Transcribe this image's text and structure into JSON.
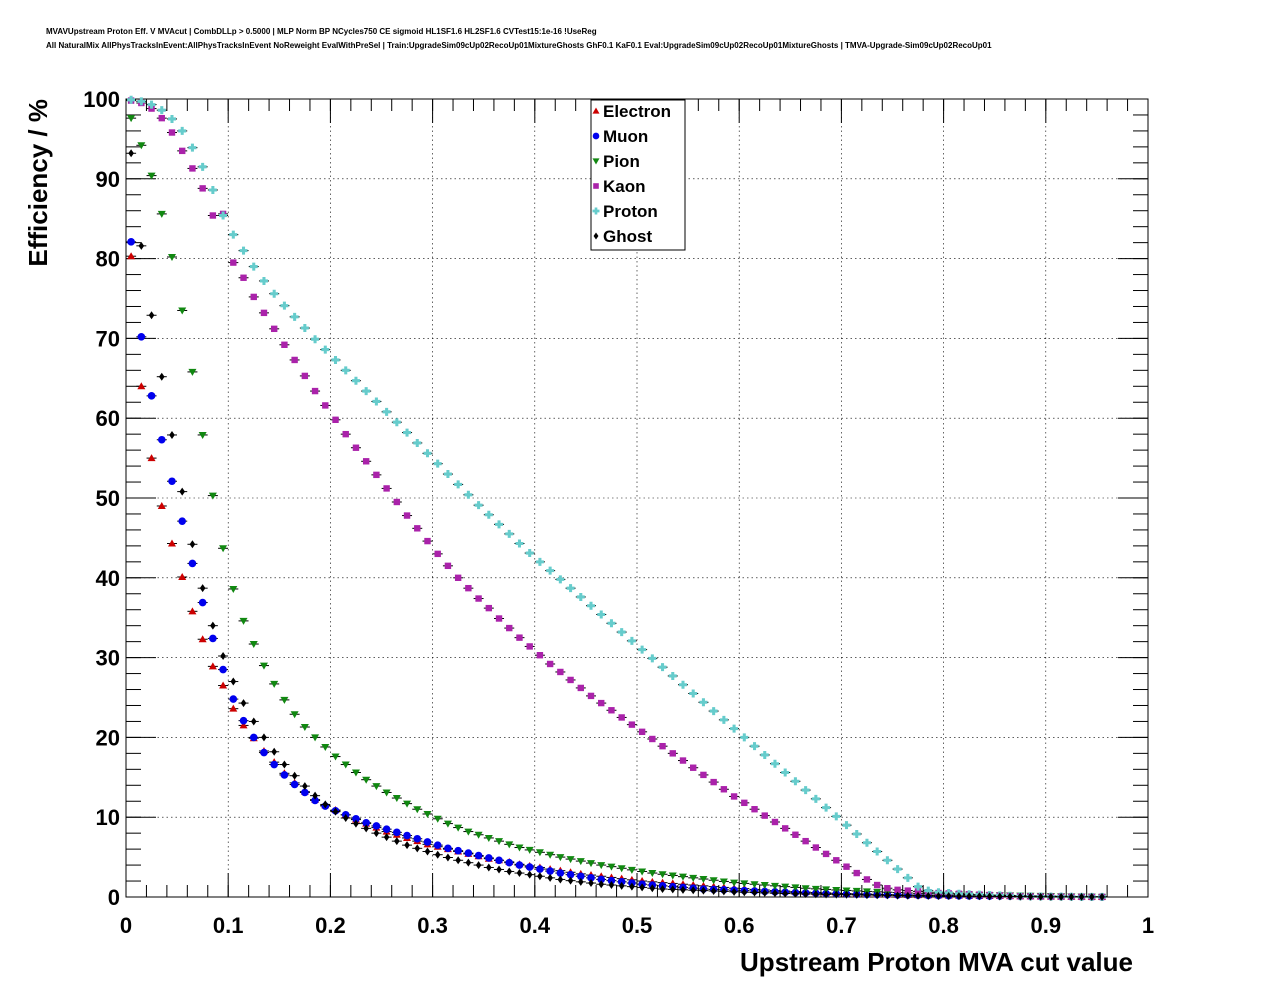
{
  "header": {
    "line1": "MVAVUpstream Proton Eff. V MVAcut | CombDLLp > 0.5000 | MLP Norm BP NCycles750 CE sigmoid HL1SF1.6 HL2SF1.6 CVTest15:1e-16 !UseReg",
    "line2": "All NaturalMix AllPhysTracksInEvent:AllPhysTracksInEvent NoReweight EvalWithPreSel | Train:UpgradeSim09cUp02RecoUp01MixtureGhosts GhF0.1 KaF0.1 Eval:UpgradeSim09cUp02RecoUp01MixtureGhosts | TMVA-Upgrade-Sim09cUp02RecoUp01"
  },
  "chart_data": {
    "type": "scatter",
    "xlabel": "Upstream Proton MVA cut value",
    "ylabel": "Efficiency / %",
    "xlim": [
      0,
      1
    ],
    "ylim": [
      0,
      100
    ],
    "x_ticks": [
      "0",
      "0.1",
      "0.2",
      "0.3",
      "0.4",
      "0.5",
      "0.6",
      "0.7",
      "0.8",
      "0.9",
      "1"
    ],
    "y_ticks": [
      "0",
      "10",
      "20",
      "30",
      "40",
      "50",
      "60",
      "70",
      "80",
      "90",
      "100"
    ],
    "grid": true,
    "legend_position": "top-center",
    "x": [
      0.005,
      0.015,
      0.025,
      0.035,
      0.045,
      0.055,
      0.065,
      0.075,
      0.085,
      0.095,
      0.105,
      0.115,
      0.125,
      0.135,
      0.145,
      0.155,
      0.165,
      0.175,
      0.185,
      0.195,
      0.205,
      0.215,
      0.225,
      0.235,
      0.245,
      0.255,
      0.265,
      0.275,
      0.285,
      0.295,
      0.305,
      0.315,
      0.325,
      0.335,
      0.345,
      0.355,
      0.365,
      0.375,
      0.385,
      0.395,
      0.405,
      0.415,
      0.425,
      0.435,
      0.445,
      0.455,
      0.465,
      0.475,
      0.485,
      0.495,
      0.505,
      0.515,
      0.525,
      0.535,
      0.545,
      0.555,
      0.565,
      0.575,
      0.585,
      0.595,
      0.605,
      0.615,
      0.625,
      0.635,
      0.645,
      0.655,
      0.665,
      0.675,
      0.685,
      0.695,
      0.705,
      0.715,
      0.725,
      0.735,
      0.745,
      0.755,
      0.765,
      0.775,
      0.785,
      0.795,
      0.805,
      0.815,
      0.825,
      0.835,
      0.845,
      0.855,
      0.865,
      0.875,
      0.885,
      0.895,
      0.905,
      0.915,
      0.925,
      0.935,
      0.945,
      0.955
    ],
    "series": [
      {
        "name": "Electron",
        "color": "#cc0000",
        "marker": "triangle-up",
        "values": [
          80.3,
          64.0,
          55.0,
          49.0,
          44.3,
          40.1,
          35.8,
          32.3,
          28.9,
          26.5,
          23.6,
          21.5,
          19.9,
          18.3,
          16.9,
          15.5,
          14.3,
          13.2,
          12.2,
          11.5,
          10.9,
          10.3,
          9.7,
          9.2,
          8.7,
          8.2,
          7.8,
          7.4,
          7.0,
          6.6,
          6.3,
          6.0,
          5.7,
          5.4,
          5.1,
          4.8,
          4.6,
          4.4,
          4.1,
          3.9,
          3.7,
          3.5,
          3.3,
          3.1,
          2.9,
          2.75,
          2.6,
          2.45,
          2.3,
          2.15,
          2.0,
          1.9,
          1.8,
          1.7,
          1.6,
          1.5,
          1.4,
          1.3,
          1.2,
          1.1,
          1.05,
          0.95,
          0.88,
          0.8,
          0.74,
          0.68,
          0.62,
          0.56,
          0.52,
          0.48,
          0.44,
          0.4,
          0.37,
          0.34,
          0.31,
          0.28,
          0.26,
          0.24,
          0.22,
          0.2,
          0.18,
          0.17,
          0.15,
          0.14,
          0.13,
          0.12,
          0.11,
          0.1,
          0.09,
          0.08,
          0.07,
          0.06,
          0.05,
          0.04,
          0.03,
          0.02
        ]
      },
      {
        "name": "Muon",
        "color": "#0000ee",
        "marker": "circle",
        "values": [
          82.1,
          70.2,
          62.8,
          57.3,
          52.1,
          47.1,
          41.8,
          36.9,
          32.4,
          28.5,
          24.8,
          22.1,
          20.0,
          18.1,
          16.6,
          15.3,
          14.1,
          13.1,
          12.1,
          11.4,
          10.8,
          10.3,
          9.8,
          9.3,
          8.9,
          8.5,
          8.1,
          7.7,
          7.3,
          6.9,
          6.5,
          6.1,
          5.8,
          5.5,
          5.2,
          4.9,
          4.6,
          4.3,
          4.0,
          3.75,
          3.5,
          3.25,
          3.0,
          2.8,
          2.6,
          2.4,
          2.2,
          2.05,
          1.9,
          1.75,
          1.6,
          1.5,
          1.4,
          1.3,
          1.2,
          1.1,
          1.0,
          0.95,
          0.9,
          0.85,
          0.8,
          0.75,
          0.7,
          0.65,
          0.6,
          0.56,
          0.52,
          0.48,
          0.44,
          0.41,
          0.38,
          0.35,
          0.32,
          0.3,
          0.28,
          0.26,
          0.24,
          0.22,
          0.2,
          0.18,
          0.16,
          0.15,
          0.14,
          0.13,
          0.12,
          0.11,
          0.1,
          0.09,
          0.08,
          0.07,
          0.06,
          0.05,
          0.04,
          0.03,
          0.02,
          0.01
        ]
      },
      {
        "name": "Pion",
        "color": "#118811",
        "marker": "triangle-down",
        "values": [
          97.6,
          94.2,
          90.4,
          85.6,
          80.2,
          73.5,
          65.8,
          57.9,
          50.3,
          43.7,
          38.6,
          34.6,
          31.7,
          29.0,
          26.7,
          24.7,
          22.9,
          21.3,
          20.0,
          18.8,
          17.6,
          16.6,
          15.6,
          14.7,
          13.9,
          13.1,
          12.4,
          11.7,
          11.0,
          10.4,
          9.8,
          9.2,
          8.7,
          8.2,
          7.8,
          7.4,
          7.0,
          6.6,
          6.2,
          5.9,
          5.6,
          5.3,
          5.0,
          4.75,
          4.5,
          4.25,
          4.0,
          3.8,
          3.6,
          3.4,
          3.2,
          3.0,
          2.85,
          2.7,
          2.55,
          2.4,
          2.25,
          2.1,
          1.95,
          1.8,
          1.7,
          1.6,
          1.5,
          1.4,
          1.3,
          1.2,
          1.1,
          1.02,
          0.95,
          0.88,
          0.82,
          0.76,
          0.7,
          0.65,
          0.6,
          0.55,
          0.5,
          0.46,
          0.42,
          0.38,
          0.35,
          0.32,
          0.29,
          0.26,
          0.24,
          0.22,
          0.2,
          0.18,
          0.16,
          0.14,
          0.12,
          0.1,
          0.08,
          0.06,
          0.04,
          0.02
        ]
      },
      {
        "name": "Kaon",
        "color": "#aa22aa",
        "marker": "square",
        "values": [
          99.8,
          99.5,
          98.8,
          97.6,
          95.8,
          93.5,
          91.3,
          88.8,
          85.4,
          85.6,
          79.5,
          77.6,
          75.2,
          73.2,
          71.2,
          69.2,
          67.3,
          65.3,
          63.4,
          61.6,
          59.8,
          58.0,
          56.3,
          54.6,
          52.9,
          51.2,
          49.5,
          47.8,
          46.2,
          44.6,
          43.0,
          41.5,
          40.0,
          38.7,
          37.4,
          36.2,
          34.9,
          33.7,
          32.5,
          31.4,
          30.3,
          29.2,
          28.2,
          27.2,
          26.2,
          25.2,
          24.3,
          23.4,
          22.5,
          21.6,
          20.7,
          19.8,
          18.9,
          18.0,
          17.1,
          16.2,
          15.3,
          14.4,
          13.5,
          12.6,
          11.8,
          11.0,
          10.2,
          9.4,
          8.6,
          7.8,
          7.0,
          6.2,
          5.4,
          4.6,
          3.8,
          3.0,
          2.2,
          1.5,
          1.1,
          0.9,
          0.8,
          0.7,
          0.6,
          0.5,
          0.45,
          0.4,
          0.35,
          0.3,
          0.25,
          0.2,
          0.15,
          0.1,
          0.08,
          0.06,
          0.05,
          0.04,
          0.03,
          0.02,
          0.01,
          0.01
        ]
      },
      {
        "name": "Proton",
        "color": "#66cccc",
        "marker": "cross",
        "values": [
          99.9,
          99.7,
          99.3,
          98.6,
          97.5,
          96.0,
          93.9,
          91.5,
          88.6,
          85.4,
          83.0,
          81.0,
          79.0,
          77.2,
          75.6,
          74.1,
          72.7,
          71.3,
          69.9,
          68.6,
          67.3,
          66.0,
          64.7,
          63.4,
          62.1,
          60.8,
          59.5,
          58.2,
          56.9,
          55.6,
          54.3,
          53.0,
          51.7,
          50.4,
          49.1,
          47.9,
          46.7,
          45.5,
          44.3,
          43.1,
          42.0,
          40.9,
          39.8,
          38.7,
          37.6,
          36.5,
          35.4,
          34.3,
          33.2,
          32.1,
          31.0,
          29.9,
          28.8,
          27.7,
          26.6,
          25.5,
          24.4,
          23.3,
          22.2,
          21.1,
          20.0,
          18.9,
          17.8,
          16.7,
          15.6,
          14.5,
          13.4,
          12.3,
          11.2,
          10.1,
          9.0,
          7.9,
          6.8,
          5.7,
          4.6,
          3.5,
          2.4,
          1.3,
          0.8,
          0.6,
          0.5,
          0.4,
          0.35,
          0.3,
          0.25,
          0.2,
          0.15,
          0.1,
          0.08,
          0.06,
          0.05,
          0.04,
          0.03,
          0.02,
          0.01,
          0.01
        ]
      },
      {
        "name": "Ghost",
        "color": "#000000",
        "marker": "diamond",
        "values": [
          93.2,
          81.6,
          72.9,
          65.2,
          57.9,
          50.8,
          44.2,
          38.7,
          34.0,
          30.2,
          27.0,
          24.3,
          22.0,
          20.0,
          18.2,
          16.6,
          15.2,
          13.9,
          12.7,
          11.6,
          10.7,
          9.9,
          9.2,
          8.6,
          8.0,
          7.5,
          7.0,
          6.5,
          6.1,
          5.7,
          5.3,
          4.95,
          4.6,
          4.3,
          4.0,
          3.7,
          3.45,
          3.2,
          3.0,
          2.8,
          2.6,
          2.4,
          2.2,
          2.05,
          1.9,
          1.75,
          1.6,
          1.5,
          1.4,
          1.3,
          1.2,
          1.1,
          1.0,
          0.95,
          0.9,
          0.85,
          0.8,
          0.75,
          0.7,
          0.65,
          0.6,
          0.56,
          0.52,
          0.48,
          0.44,
          0.41,
          0.38,
          0.35,
          0.32,
          0.3,
          0.28,
          0.26,
          0.24,
          0.22,
          0.2,
          0.18,
          0.16,
          0.15,
          0.14,
          0.13,
          0.12,
          0.11,
          0.1,
          0.09,
          0.08,
          0.07,
          0.06,
          0.05,
          0.04,
          0.03,
          0.02,
          0.02,
          0.01,
          0.01,
          0.01,
          0.01
        ]
      }
    ]
  }
}
